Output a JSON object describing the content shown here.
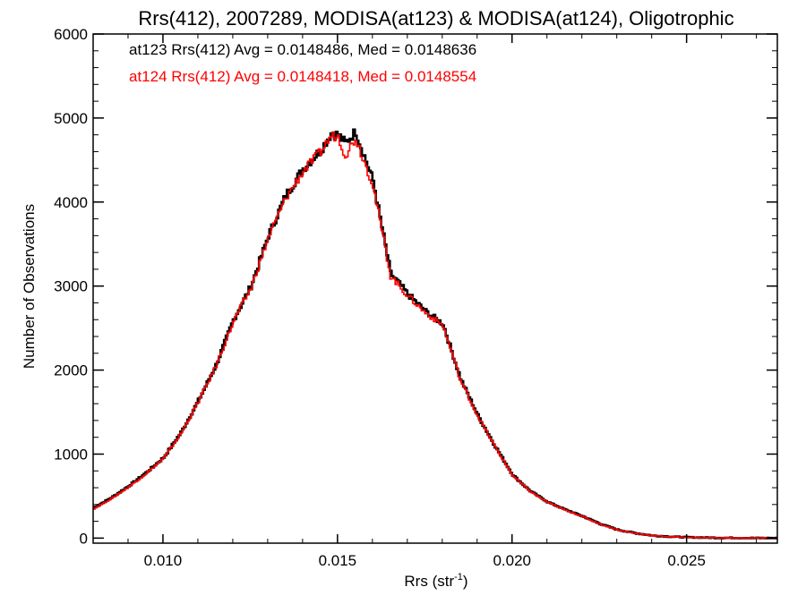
{
  "chart_data": {
    "type": "line",
    "title": "Rrs(412), 2007289, MODISA(at123) & MODISA(at124), Oligotrophic",
    "xlabel_main": "Rrs (str",
    "xlabel_sup": "-1",
    "xlabel_close": ")",
    "ylabel": "Number of Observations",
    "xlim": [
      0.008,
      0.0276
    ],
    "ylim": [
      -60,
      6000
    ],
    "xticks": [
      0.01,
      0.015,
      0.02,
      0.025
    ],
    "xtick_labels": [
      "0.010",
      "0.015",
      "0.020",
      "0.025"
    ],
    "yticks": [
      0,
      1000,
      2000,
      3000,
      4000,
      5000,
      6000
    ],
    "ytick_labels": [
      "0",
      "1000",
      "2000",
      "3000",
      "4000",
      "5000",
      "6000"
    ],
    "grid": false,
    "legend": {
      "placement": "top-left",
      "entries": [
        {
          "text": "at123 Rrs(412) Avg = 0.0148486, Med = 0.0148636",
          "color": "#000000"
        },
        {
          "text": "at124 Rrs(412) Avg = 0.0148418, Med = 0.0148554",
          "color": "#ff0000"
        }
      ]
    },
    "series": [
      {
        "color": "#000000",
        "x": [
          0.008,
          0.0085,
          0.009,
          0.0095,
          0.01,
          0.0105,
          0.011,
          0.0115,
          0.012,
          0.0125,
          0.013,
          0.0135,
          0.014,
          0.0145,
          0.0148,
          0.015,
          0.0152,
          0.0155,
          0.016,
          0.0165,
          0.017,
          0.0175,
          0.018,
          0.0185,
          0.019,
          0.0195,
          0.02,
          0.0205,
          0.021,
          0.0215,
          0.022,
          0.0225,
          0.023,
          0.0235,
          0.024,
          0.0245,
          0.025,
          0.0255,
          0.026,
          0.0265,
          0.027,
          0.0276
        ],
        "y": [
          360,
          480,
          620,
          780,
          960,
          1260,
          1640,
          2060,
          2600,
          3000,
          3600,
          4080,
          4400,
          4620,
          4820,
          4800,
          4700,
          4840,
          4250,
          3150,
          2900,
          2700,
          2550,
          1900,
          1460,
          1090,
          750,
          560,
          430,
          340,
          260,
          170,
          100,
          60,
          30,
          18,
          10,
          6,
          3,
          2,
          1,
          0
        ]
      },
      {
        "color": "#ff0000",
        "x": [
          0.008,
          0.0085,
          0.009,
          0.0095,
          0.01,
          0.0105,
          0.011,
          0.0115,
          0.012,
          0.0125,
          0.013,
          0.0135,
          0.014,
          0.0145,
          0.0148,
          0.015,
          0.0152,
          0.0155,
          0.016,
          0.0165,
          0.017,
          0.0175,
          0.018,
          0.0185,
          0.019,
          0.0195,
          0.02,
          0.0205,
          0.021,
          0.0215,
          0.022,
          0.0225,
          0.023,
          0.0235,
          0.024,
          0.0245,
          0.025,
          0.0255,
          0.026,
          0.0265,
          0.027,
          0.0276
        ],
        "y": [
          350,
          470,
          610,
          770,
          950,
          1250,
          1630,
          2050,
          2580,
          2980,
          3580,
          4050,
          4370,
          4600,
          4790,
          4780,
          4560,
          4760,
          4200,
          3120,
          2880,
          2680,
          2530,
          1880,
          1450,
          1080,
          740,
          555,
          425,
          335,
          255,
          165,
          98,
          58,
          28,
          17,
          9,
          5,
          3,
          2,
          1,
          0
        ]
      }
    ]
  }
}
